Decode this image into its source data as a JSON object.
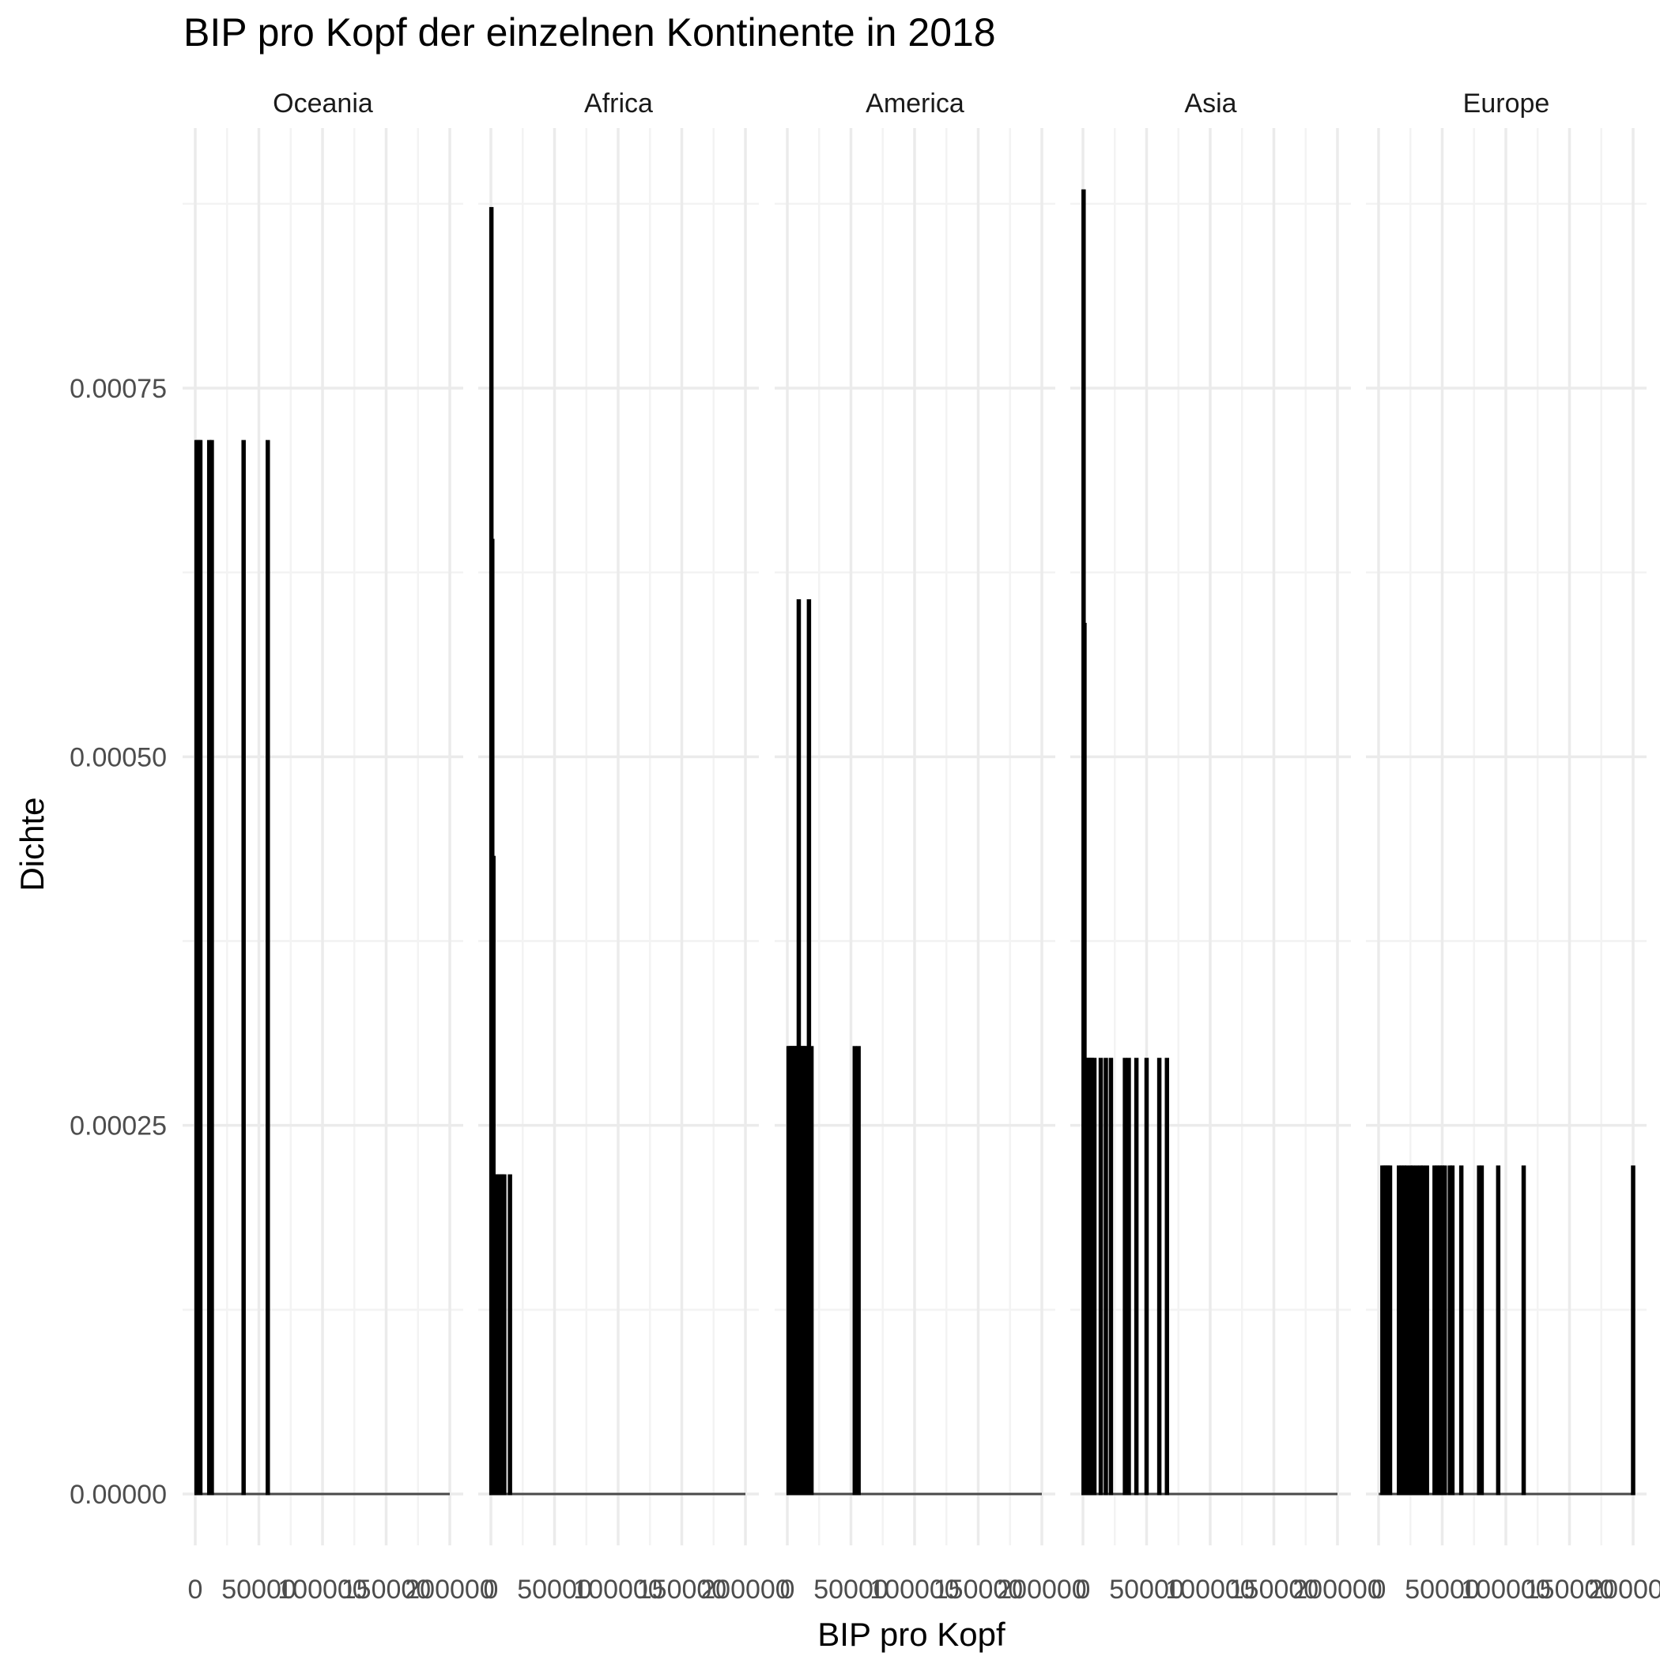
{
  "chart_data": {
    "type": "histogram",
    "title": "BIP pro Kopf der einzelnen Kontinente in 2018",
    "xlabel": "BIP pro Kopf",
    "ylabel": "Dichte",
    "xlim": [
      0,
      200000
    ],
    "ylim": [
      0,
      0.0009
    ],
    "x_ticks": [
      "0",
      "50000",
      "100000",
      "150000",
      "200000"
    ],
    "y_ticks": [
      "0.00000",
      "0.00025",
      "0.00050",
      "0.00075"
    ],
    "y_tick_values": [
      0,
      0.00025,
      0.0005,
      0.00075
    ],
    "grid": true,
    "legend": "none",
    "bar_color": "#000000",
    "bin_width": 100,
    "facets": [
      {
        "name": "Oceania",
        "bins": [
          {
            "x": 1000,
            "density": 0.000714
          },
          {
            "x": 2000,
            "density": 0.000714
          },
          {
            "x": 3000,
            "density": 0.000714
          },
          {
            "x": 4000,
            "density": 0.000714
          },
          {
            "x": 11000,
            "density": 0.000714
          },
          {
            "x": 13000,
            "density": 0.000714
          },
          {
            "x": 38000,
            "density": 0.000714
          },
          {
            "x": 57000,
            "density": 0.000714
          }
        ]
      },
      {
        "name": "Africa",
        "bins": [
          {
            "x": 400,
            "density": 0.000872
          },
          {
            "x": 1100,
            "density": 0.000647
          },
          {
            "x": 2000,
            "density": 0.000432
          },
          {
            "x": 3000,
            "density": 0.000216
          },
          {
            "x": 4500,
            "density": 0.000216
          },
          {
            "x": 6000,
            "density": 0.000216
          },
          {
            "x": 7500,
            "density": 0.000216
          },
          {
            "x": 9000,
            "density": 0.000216
          },
          {
            "x": 10500,
            "density": 0.000216
          },
          {
            "x": 15000,
            "density": 0.000216
          }
        ]
      },
      {
        "name": "America",
        "bins": [
          {
            "x": 1000,
            "density": 0.000303
          },
          {
            "x": 2000,
            "density": 0.000303
          },
          {
            "x": 3000,
            "density": 0.000303
          },
          {
            "x": 4000,
            "density": 0.000303
          },
          {
            "x": 5000,
            "density": 0.000303
          },
          {
            "x": 6000,
            "density": 0.000303
          },
          {
            "x": 7000,
            "density": 0.000303
          },
          {
            "x": 8000,
            "density": 0.000303
          },
          {
            "x": 9000,
            "density": 0.000606
          },
          {
            "x": 10000,
            "density": 0.000303
          },
          {
            "x": 11000,
            "density": 0.000303
          },
          {
            "x": 12000,
            "density": 0.000303
          },
          {
            "x": 13000,
            "density": 0.000303
          },
          {
            "x": 14000,
            "density": 0.000303
          },
          {
            "x": 15000,
            "density": 0.000303
          },
          {
            "x": 17000,
            "density": 0.000606
          },
          {
            "x": 19000,
            "density": 0.000303
          },
          {
            "x": 53000,
            "density": 0.000303
          },
          {
            "x": 56000,
            "density": 0.000303
          }
        ]
      },
      {
        "name": "Asia",
        "bins": [
          {
            "x": 500,
            "density": 0.000884
          },
          {
            "x": 1200,
            "density": 0.00059
          },
          {
            "x": 2000,
            "density": 0.000295
          },
          {
            "x": 3000,
            "density": 0.000295
          },
          {
            "x": 4000,
            "density": 0.000295
          },
          {
            "x": 5000,
            "density": 0.000295
          },
          {
            "x": 6000,
            "density": 0.000295
          },
          {
            "x": 7000,
            "density": 0.000295
          },
          {
            "x": 9000,
            "density": 0.000295
          },
          {
            "x": 14000,
            "density": 0.000295
          },
          {
            "x": 18000,
            "density": 0.000295
          },
          {
            "x": 22000,
            "density": 0.000295
          },
          {
            "x": 33000,
            "density": 0.000295
          },
          {
            "x": 36000,
            "density": 0.000295
          },
          {
            "x": 42000,
            "density": 0.000295
          },
          {
            "x": 50000,
            "density": 0.000295
          },
          {
            "x": 60000,
            "density": 0.000295
          },
          {
            "x": 66000,
            "density": 0.000295
          }
        ]
      },
      {
        "name": "Europe",
        "bins": [
          {
            "x": 3000,
            "density": 0.000222
          },
          {
            "x": 4500,
            "density": 0.000222
          },
          {
            "x": 6000,
            "density": 0.000222
          },
          {
            "x": 7500,
            "density": 0.000222
          },
          {
            "x": 9000,
            "density": 0.000222
          },
          {
            "x": 16000,
            "density": 0.000222
          },
          {
            "x": 18000,
            "density": 0.000222
          },
          {
            "x": 20000,
            "density": 0.000222
          },
          {
            "x": 22000,
            "density": 0.000222
          },
          {
            "x": 25000,
            "density": 0.000222
          },
          {
            "x": 27000,
            "density": 0.000222
          },
          {
            "x": 30000,
            "density": 0.000222
          },
          {
            "x": 33000,
            "density": 0.000222
          },
          {
            "x": 35000,
            "density": 0.000222
          },
          {
            "x": 38000,
            "density": 0.000222
          },
          {
            "x": 44000,
            "density": 0.000222
          },
          {
            "x": 46000,
            "density": 0.000222
          },
          {
            "x": 48000,
            "density": 0.000222
          },
          {
            "x": 50000,
            "density": 0.000222
          },
          {
            "x": 52000,
            "density": 0.000222
          },
          {
            "x": 56000,
            "density": 0.000222
          },
          {
            "x": 58000,
            "density": 0.000222
          },
          {
            "x": 65000,
            "density": 0.000222
          },
          {
            "x": 79000,
            "density": 0.000222
          },
          {
            "x": 81000,
            "density": 0.000222
          },
          {
            "x": 94000,
            "density": 0.000222
          },
          {
            "x": 114000,
            "density": 0.000222
          },
          {
            "x": 200000,
            "density": 0.000222
          }
        ]
      }
    ]
  }
}
